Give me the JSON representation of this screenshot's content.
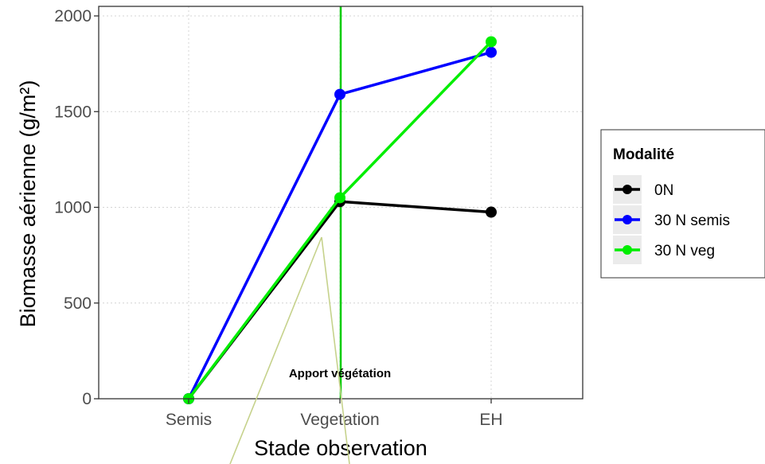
{
  "chart_data": {
    "type": "line",
    "categories": [
      "Semis",
      "Vegetation",
      "EH"
    ],
    "xlabel": "Stade observation",
    "ylabel": "Biomasse aérienne (g/m²)",
    "ylim": [
      0,
      2000
    ],
    "yticks": [
      "0",
      "500",
      "1000",
      "1500",
      "2000"
    ],
    "grid": true,
    "legend": {
      "title": "Modalité",
      "position": "right"
    },
    "series": [
      {
        "name": "0N",
        "color": "#000000",
        "values": [
          0,
          1030,
          975
        ]
      },
      {
        "name": "30 N semis",
        "color": "#0000ff",
        "values": [
          0,
          1590,
          1810
        ]
      },
      {
        "name": "30 N veg",
        "color": "#00ee00",
        "values": [
          0,
          1050,
          1865
        ]
      }
    ],
    "annotations": [
      {
        "text": "Apport végétation",
        "x_category": "Vegetation",
        "vertical_line_color": "#00cc00"
      }
    ]
  }
}
